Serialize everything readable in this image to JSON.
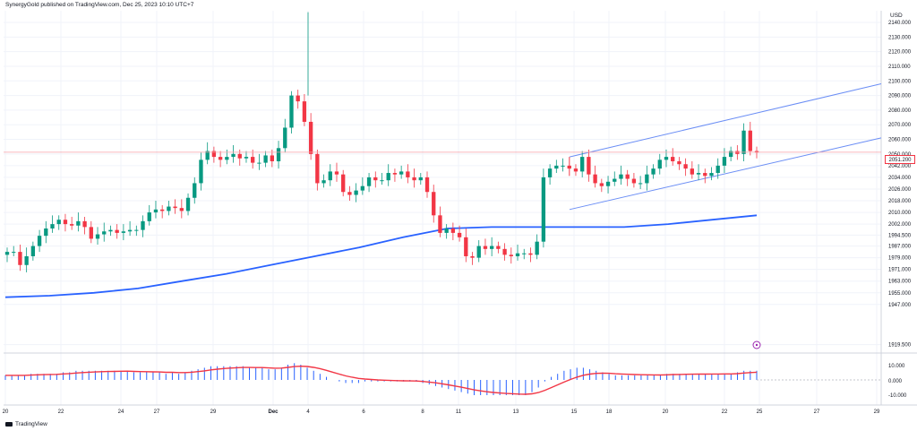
{
  "header": {
    "publisher_text": "SynergyGold published on TradingView.com, Dec 25, 2023 10:10 UTC+7"
  },
  "footer": {
    "logo_text": "TradingView"
  },
  "price_axis": {
    "currency": "USD",
    "last_price": "2051.200",
    "ticks": [
      "2140.000",
      "2130.000",
      "2120.000",
      "2110.000",
      "2100.000",
      "2090.000",
      "2080.000",
      "2070.000",
      "2060.000",
      "2050.000",
      "2042.000",
      "2034.000",
      "2026.000",
      "2018.000",
      "2010.000",
      "2002.000",
      "1994.500",
      "1987.000",
      "1979.000",
      "1971.000",
      "1963.000",
      "1955.000",
      "1947.000",
      "1919.500"
    ]
  },
  "macd_axis": {
    "ticks": [
      "10.000",
      "0.000",
      "-10.000"
    ]
  },
  "time_axis": {
    "ticks": [
      "20",
      "22",
      "24",
      "27",
      "29",
      "Dec",
      "4",
      "6",
      "8",
      "11",
      "13",
      "15",
      "18",
      "20",
      "22",
      "25",
      "27",
      "29"
    ]
  },
  "colors": {
    "up": "#089981",
    "down": "#f23645",
    "ma_line": "#2962ff",
    "channel": "#6b8ef5",
    "macd_hist": "#2962ff",
    "macd_signal": "#f23645",
    "grid": "#f0f3fa"
  },
  "chart_data": {
    "type": "candlestick",
    "title": "",
    "price_ylim": [
      1915,
      2148
    ],
    "closes": [
      1983,
      1983,
      1974,
      1980,
      1987,
      1994,
      1999,
      2002,
      2005,
      2002,
      2001,
      2004,
      2000,
      1992,
      1995,
      1997,
      1998,
      1996,
      1997,
      1998,
      1998,
      2004,
      2010,
      2012,
      2011,
      2014,
      2013,
      2011,
      2020,
      2030,
      2046,
      2052,
      2048,
      2046,
      2048,
      2050,
      2047,
      2048,
      2044,
      2044,
      2049,
      2045,
      2054,
      2068,
      2090,
      2086,
      2072,
      2050,
      2030,
      2032,
      2038,
      2036,
      2024,
      2022,
      2025,
      2028,
      2034,
      2032,
      2032,
      2037,
      2036,
      2038,
      2034,
      2032,
      2034,
      2024,
      2008,
      1996,
      1999,
      1996,
      1993,
      1980,
      1979,
      1987,
      1985,
      1987,
      1985,
      1981,
      1980,
      1982,
      1982,
      1981,
      1990,
      2034,
      2040,
      2042,
      2042,
      2040,
      2038,
      2048,
      2036,
      2030,
      2028,
      2031,
      2033,
      2036,
      2033,
      2030,
      2030,
      2036,
      2040,
      2046,
      2048,
      2045,
      2043,
      2040,
      2036,
      2037,
      2035,
      2037,
      2042,
      2048,
      2052,
      2050,
      2066,
      2052,
      2051
    ],
    "ma_values": [
      1952,
      1953,
      1955,
      1958,
      1963,
      1968,
      1974,
      1980,
      1986,
      1993,
      1999,
      2000,
      2000,
      2000,
      2000,
      2002,
      2005,
      2008
    ],
    "channel_upper": [
      [
        14.0,
        2048
      ],
      [
        25.4,
        2098
      ]
    ],
    "channel_lower": [
      [
        14.0,
        2012
      ],
      [
        25.4,
        2061
      ]
    ],
    "macd_hist": [
      3,
      3,
      3,
      3,
      4,
      4,
      4,
      4,
      4,
      5,
      5,
      6,
      6,
      6,
      6,
      6,
      6,
      6,
      6,
      6,
      5,
      5,
      5,
      5,
      5,
      4,
      5,
      4,
      5,
      6,
      7,
      8,
      9,
      9,
      9,
      9,
      9,
      9,
      8,
      8,
      8,
      7,
      7,
      8,
      10,
      11,
      10,
      8,
      6,
      4,
      2,
      0,
      -1,
      -2,
      -2,
      -2,
      -1,
      -1,
      -1,
      -1,
      -1,
      -1,
      -1,
      -1,
      -1,
      -2,
      -3,
      -4,
      -5,
      -6,
      -7,
      -8,
      -9,
      -10,
      -10,
      -10,
      -10,
      -10,
      -10,
      -10,
      -10,
      -10,
      -8,
      -5,
      -1,
      2,
      4,
      6,
      7,
      8,
      8,
      7,
      6,
      5,
      4,
      3,
      3,
      3,
      3,
      3,
      3,
      3,
      3,
      4,
      4,
      4,
      4,
      4,
      4,
      4,
      4,
      4,
      4,
      4,
      5,
      6,
      6,
      6
    ],
    "x_labels": [
      "20",
      "22",
      "24",
      "27",
      "29",
      "Dec",
      "4",
      "6",
      "8",
      "11",
      "13",
      "15",
      "18",
      "20",
      "22",
      "25",
      "27",
      "29"
    ]
  }
}
